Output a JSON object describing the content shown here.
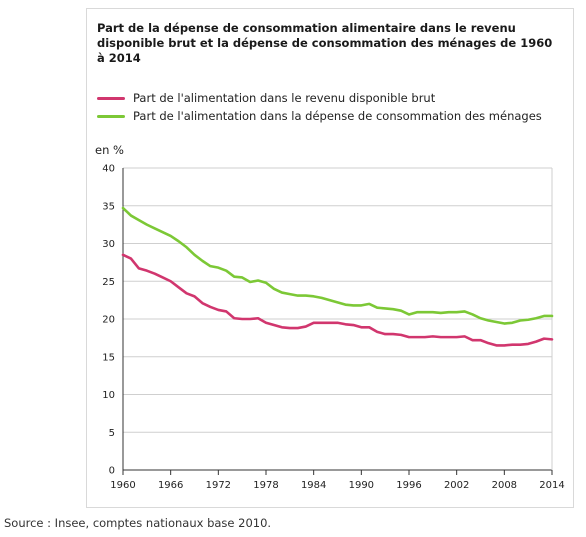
{
  "chart_data": {
    "type": "line",
    "title": "Part de la dépense de consommation alimentaire dans le revenu disponible brut et la dépense de consommation des ménages de 1960 à 2014",
    "ylabel": "en %",
    "xlabel": "",
    "ylim": [
      0,
      40
    ],
    "xlim": [
      1960,
      2014
    ],
    "yticks": [
      0,
      5,
      10,
      15,
      20,
      25,
      30,
      35,
      40
    ],
    "xticks": [
      1960,
      1966,
      1972,
      1978,
      1984,
      1990,
      1996,
      2002,
      2008,
      2014
    ],
    "grid": "horizontal",
    "legend": "top",
    "x": [
      1960,
      1961,
      1962,
      1963,
      1964,
      1965,
      1966,
      1967,
      1968,
      1969,
      1970,
      1971,
      1972,
      1973,
      1974,
      1975,
      1976,
      1977,
      1978,
      1979,
      1980,
      1981,
      1982,
      1983,
      1984,
      1985,
      1986,
      1987,
      1988,
      1989,
      1990,
      1991,
      1992,
      1993,
      1994,
      1995,
      1996,
      1997,
      1998,
      1999,
      2000,
      2001,
      2002,
      2003,
      2004,
      2005,
      2006,
      2007,
      2008,
      2009,
      2010,
      2011,
      2012,
      2013,
      2014
    ],
    "series": [
      {
        "name": "Part de l'alimentation dans le revenu disponible brut",
        "color": "#d1366e",
        "values": [
          28.5,
          28.0,
          26.7,
          26.4,
          26.0,
          25.5,
          25.0,
          24.2,
          23.4,
          23.0,
          22.1,
          21.6,
          21.2,
          21.0,
          20.1,
          20.0,
          20.0,
          20.1,
          19.5,
          19.2,
          18.9,
          18.8,
          18.8,
          19.0,
          19.5,
          19.5,
          19.5,
          19.5,
          19.3,
          19.2,
          18.9,
          18.9,
          18.3,
          18.0,
          18.0,
          17.9,
          17.6,
          17.6,
          17.6,
          17.7,
          17.6,
          17.6,
          17.6,
          17.7,
          17.2,
          17.2,
          16.8,
          16.5,
          16.5,
          16.6,
          16.6,
          16.7,
          17.0,
          17.4,
          17.3
        ]
      },
      {
        "name": "Part de l'alimentation dans la dépense de consommation des ménages",
        "color": "#7cc836",
        "values": [
          34.7,
          33.7,
          33.1,
          32.5,
          32.0,
          31.5,
          31.0,
          30.3,
          29.5,
          28.5,
          27.7,
          27.0,
          26.8,
          26.4,
          25.6,
          25.5,
          24.9,
          25.1,
          24.8,
          24.0,
          23.5,
          23.3,
          23.1,
          23.1,
          23.0,
          22.8,
          22.5,
          22.2,
          21.9,
          21.8,
          21.8,
          22.0,
          21.5,
          21.4,
          21.3,
          21.1,
          20.6,
          20.9,
          20.9,
          20.9,
          20.8,
          20.9,
          20.9,
          21.0,
          20.6,
          20.1,
          19.8,
          19.6,
          19.4,
          19.5,
          19.8,
          19.9,
          20.1,
          20.4,
          20.4
        ]
      }
    ]
  },
  "source": "Source : Insee, comptes nationaux base 2010."
}
